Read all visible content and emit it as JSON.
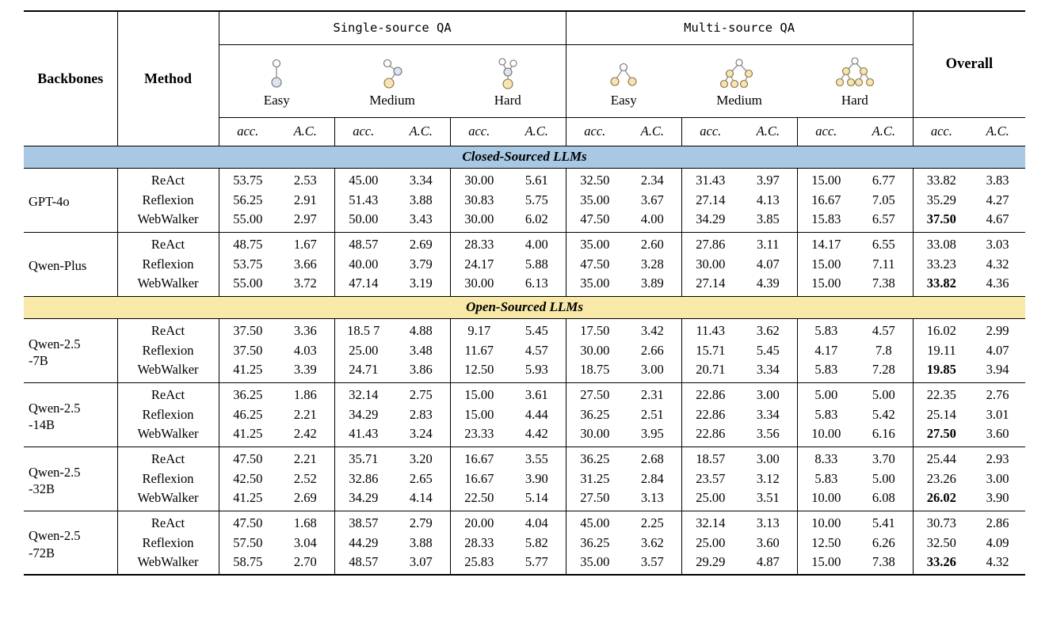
{
  "header": {
    "backbones": "Backbones",
    "method": "Method",
    "single_source": "Single-source QA",
    "multi_source": "Multi-source QA",
    "overall": "Overall",
    "difficulties": [
      "Easy",
      "Medium",
      "Hard"
    ],
    "acc_label": "acc.",
    "ac_label": "A.C.",
    "difficulty_icons": {
      "single": [
        "single-easy-graph-icon",
        "single-medium-graph-icon",
        "single-hard-graph-icon"
      ],
      "multi": [
        "multi-easy-graph-icon",
        "multi-medium-graph-icon",
        "multi-hard-graph-icon"
      ]
    }
  },
  "colors": {
    "closed_band": "#a9c8e4",
    "open_band": "#f9e9a8",
    "rule": "#000000"
  },
  "sections": [
    {
      "id": "closed",
      "title": "Closed-Sourced LLMs",
      "band_color": "#a9c8e4",
      "groups": [
        {
          "backbone": "GPT-4o",
          "rows": [
            {
              "method": "ReAct",
              "overall_bold": false,
              "values": [
                "53.75",
                "2.53",
                "45.00",
                "3.34",
                "30.00",
                "5.61",
                "32.50",
                "2.34",
                "31.43",
                "3.97",
                "15.00",
                "6.77",
                "33.82",
                "3.83"
              ]
            },
            {
              "method": "Reflexion",
              "overall_bold": false,
              "values": [
                "56.25",
                "2.91",
                "51.43",
                "3.88",
                "30.83",
                "5.75",
                "35.00",
                "3.67",
                "27.14",
                "4.13",
                "16.67",
                "7.05",
                "35.29",
                "4.27"
              ]
            },
            {
              "method": "WebWalker",
              "overall_bold": true,
              "values": [
                "55.00",
                "2.97",
                "50.00",
                "3.43",
                "30.00",
                "6.02",
                "47.50",
                "4.00",
                "34.29",
                "3.85",
                "15.83",
                "6.57",
                "37.50",
                "4.67"
              ]
            }
          ]
        },
        {
          "backbone": "Qwen-Plus",
          "rows": [
            {
              "method": "ReAct",
              "overall_bold": false,
              "values": [
                "48.75",
                "1.67",
                "48.57",
                "2.69",
                "28.33",
                "4.00",
                "35.00",
                "2.60",
                "27.86",
                "3.11",
                "14.17",
                "6.55",
                "33.08",
                "3.03"
              ]
            },
            {
              "method": "Reflexion",
              "overall_bold": false,
              "values": [
                "53.75",
                "3.66",
                "40.00",
                "3.79",
                "24.17",
                "5.88",
                "47.50",
                "3.28",
                "30.00",
                "4.07",
                "15.00",
                "7.11",
                "33.23",
                "4.32"
              ]
            },
            {
              "method": "WebWalker",
              "overall_bold": true,
              "values": [
                "55.00",
                "3.72",
                "47.14",
                "3.19",
                "30.00",
                "6.13",
                "35.00",
                "3.89",
                "27.14",
                "4.39",
                "15.00",
                "7.38",
                "33.82",
                "4.36"
              ]
            }
          ]
        }
      ]
    },
    {
      "id": "open",
      "title": "Open-Sourced LLMs",
      "band_color": "#f9e9a8",
      "groups": [
        {
          "backbone": "Qwen-2.5\n-7B",
          "rows": [
            {
              "method": "ReAct",
              "overall_bold": false,
              "values": [
                "37.50",
                "3.36",
                "18.5 7",
                "4.88",
                "9.17",
                "5.45",
                "17.50",
                "3.42",
                "11.43",
                "3.62",
                "5.83",
                "4.57",
                "16.02",
                "2.99"
              ]
            },
            {
              "method": "Reflexion",
              "overall_bold": false,
              "values": [
                "37.50",
                "4.03",
                "25.00",
                "3.48",
                "11.67",
                "4.57",
                "30.00",
                "2.66",
                "15.71",
                "5.45",
                "4.17",
                "7.8",
                "19.11",
                "4.07"
              ]
            },
            {
              "method": "WebWalker",
              "overall_bold": true,
              "values": [
                "41.25",
                "3.39",
                "24.71",
                "3.86",
                "12.50",
                "5.93",
                "18.75",
                "3.00",
                "20.71",
                "3.34",
                "5.83",
                "7.28",
                "19.85",
                "3.94"
              ]
            }
          ]
        },
        {
          "backbone": "Qwen-2.5\n-14B",
          "rows": [
            {
              "method": "ReAct",
              "overall_bold": false,
              "values": [
                "36.25",
                "1.86",
                "32.14",
                "2.75",
                "15.00",
                "3.61",
                "27.50",
                "2.31",
                "22.86",
                "3.00",
                "5.00",
                "5.00",
                "22.35",
                "2.76"
              ]
            },
            {
              "method": "Reflexion",
              "overall_bold": false,
              "values": [
                "46.25",
                "2.21",
                "34.29",
                "2.83",
                "15.00",
                "4.44",
                "36.25",
                "2.51",
                "22.86",
                "3.34",
                "5.83",
                "5.42",
                "25.14",
                "3.01"
              ]
            },
            {
              "method": "WebWalker",
              "overall_bold": true,
              "values": [
                "41.25",
                "2.42",
                "41.43",
                "3.24",
                "23.33",
                "4.42",
                "30.00",
                "3.95",
                "22.86",
                "3.56",
                "10.00",
                "6.16",
                "27.50",
                "3.60"
              ]
            }
          ]
        },
        {
          "backbone": "Qwen-2.5\n-32B",
          "rows": [
            {
              "method": "ReAct",
              "overall_bold": false,
              "values": [
                "47.50",
                "2.21",
                "35.71",
                "3.20",
                "16.67",
                "3.55",
                "36.25",
                "2.68",
                "18.57",
                "3.00",
                "8.33",
                "3.70",
                "25.44",
                "2.93"
              ]
            },
            {
              "method": "Reflexion",
              "overall_bold": false,
              "values": [
                "42.50",
                "2.52",
                "32.86",
                "2.65",
                "16.67",
                "3.90",
                "31.25",
                "2.84",
                "23.57",
                "3.12",
                "5.83",
                "5.00",
                "23.26",
                "3.00"
              ]
            },
            {
              "method": "WebWalker",
              "overall_bold": true,
              "values": [
                "41.25",
                "2.69",
                "34.29",
                "4.14",
                "22.50",
                "5.14",
                "27.50",
                "3.13",
                "25.00",
                "3.51",
                "10.00",
                "6.08",
                "26.02",
                "3.90"
              ]
            }
          ]
        },
        {
          "backbone": "Qwen-2.5\n-72B",
          "rows": [
            {
              "method": "ReAct",
              "overall_bold": false,
              "values": [
                "47.50",
                "1.68",
                "38.57",
                "2.79",
                "20.00",
                "4.04",
                "45.00",
                "2.25",
                "32.14",
                "3.13",
                "10.00",
                "5.41",
                "30.73",
                "2.86"
              ]
            },
            {
              "method": "Reflexion",
              "overall_bold": false,
              "values": [
                "57.50",
                "3.04",
                "44.29",
                "3.88",
                "28.33",
                "5.82",
                "36.25",
                "3.62",
                "25.00",
                "3.60",
                "12.50",
                "6.26",
                "32.50",
                "4.09"
              ]
            },
            {
              "method": "WebWalker",
              "overall_bold": true,
              "values": [
                "58.75",
                "2.70",
                "48.57",
                "3.07",
                "25.83",
                "5.77",
                "35.00",
                "3.57",
                "29.29",
                "4.87",
                "15.00",
                "7.38",
                "33.26",
                "4.32"
              ]
            }
          ]
        }
      ]
    }
  ]
}
